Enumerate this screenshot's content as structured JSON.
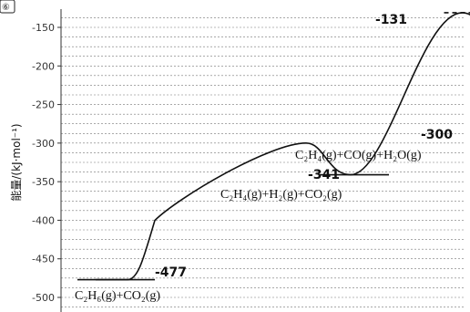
{
  "corner_badge": "⑥",
  "chart_data": {
    "type": "line",
    "ylabel": "能量/(kJ·mol⁻¹)",
    "ylim": [
      -520,
      -125
    ],
    "yticks": [
      -150,
      -200,
      -250,
      -300,
      -350,
      -400,
      -450,
      -500
    ],
    "grid": true,
    "points": [
      {
        "x": 0.0,
        "y": -477
      },
      {
        "x": 0.8,
        "y": -300
      },
      {
        "x": 1.0,
        "y": -341
      },
      {
        "x": 1.5,
        "y": -131
      },
      {
        "x": 2.0,
        "y": -300
      }
    ],
    "stages": [
      {
        "value": -477,
        "label": "-477",
        "species": "C₂H₆(g)+CO₂(g)"
      },
      {
        "value": -341,
        "label": "-341",
        "species": "C₂H₄(g)+H₂(g)+CO₂(g)"
      },
      {
        "value": -131,
        "label": "-131",
        "species": ""
      },
      {
        "value": -300,
        "label": "-300",
        "species": "C₂H₄(g)+CO(g)+H₂O(g)"
      }
    ]
  }
}
